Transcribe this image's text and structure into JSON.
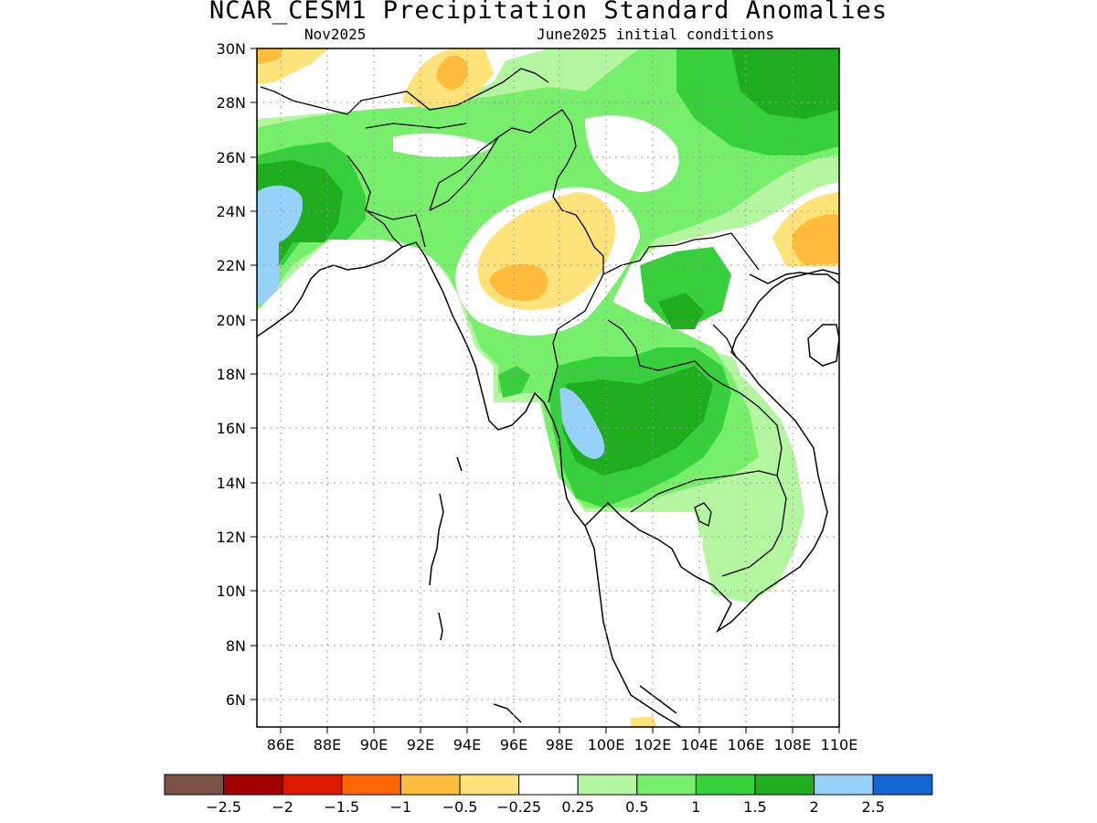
{
  "title": "NCAR_CESM1 Precipitation Standard Anomalies",
  "subtitle_left": "Nov2025",
  "subtitle_right": "June2025 initial conditions",
  "map": {
    "lon_range": [
      85,
      110
    ],
    "lat_range": [
      5,
      30
    ],
    "lat_ticks": [
      "6N",
      "8N",
      "10N",
      "12N",
      "14N",
      "16N",
      "18N",
      "20N",
      "22N",
      "24N",
      "26N",
      "28N",
      "30N"
    ],
    "lon_ticks": [
      "86E",
      "88E",
      "90E",
      "92E",
      "94E",
      "96E",
      "98E",
      "100E",
      "102E",
      "104E",
      "106E",
      "108E",
      "110E"
    ],
    "grid": "dotted"
  },
  "legend": {
    "colors": [
      "#7a5248",
      "#a30000",
      "#dd1900",
      "#ff6600",
      "#ffbc3c",
      "#ffe27a",
      "#ffffff",
      "#b4f5a0",
      "#78ef6c",
      "#37d03c",
      "#1fad1f",
      "#96d1fa",
      "#1464d2"
    ],
    "labels": [
      "−2.5",
      "−2",
      "−1.5",
      "−1",
      "−0.5",
      "−0.25",
      "0.25",
      "0.5",
      "1",
      "1.5",
      "2",
      "2.5"
    ]
  }
}
